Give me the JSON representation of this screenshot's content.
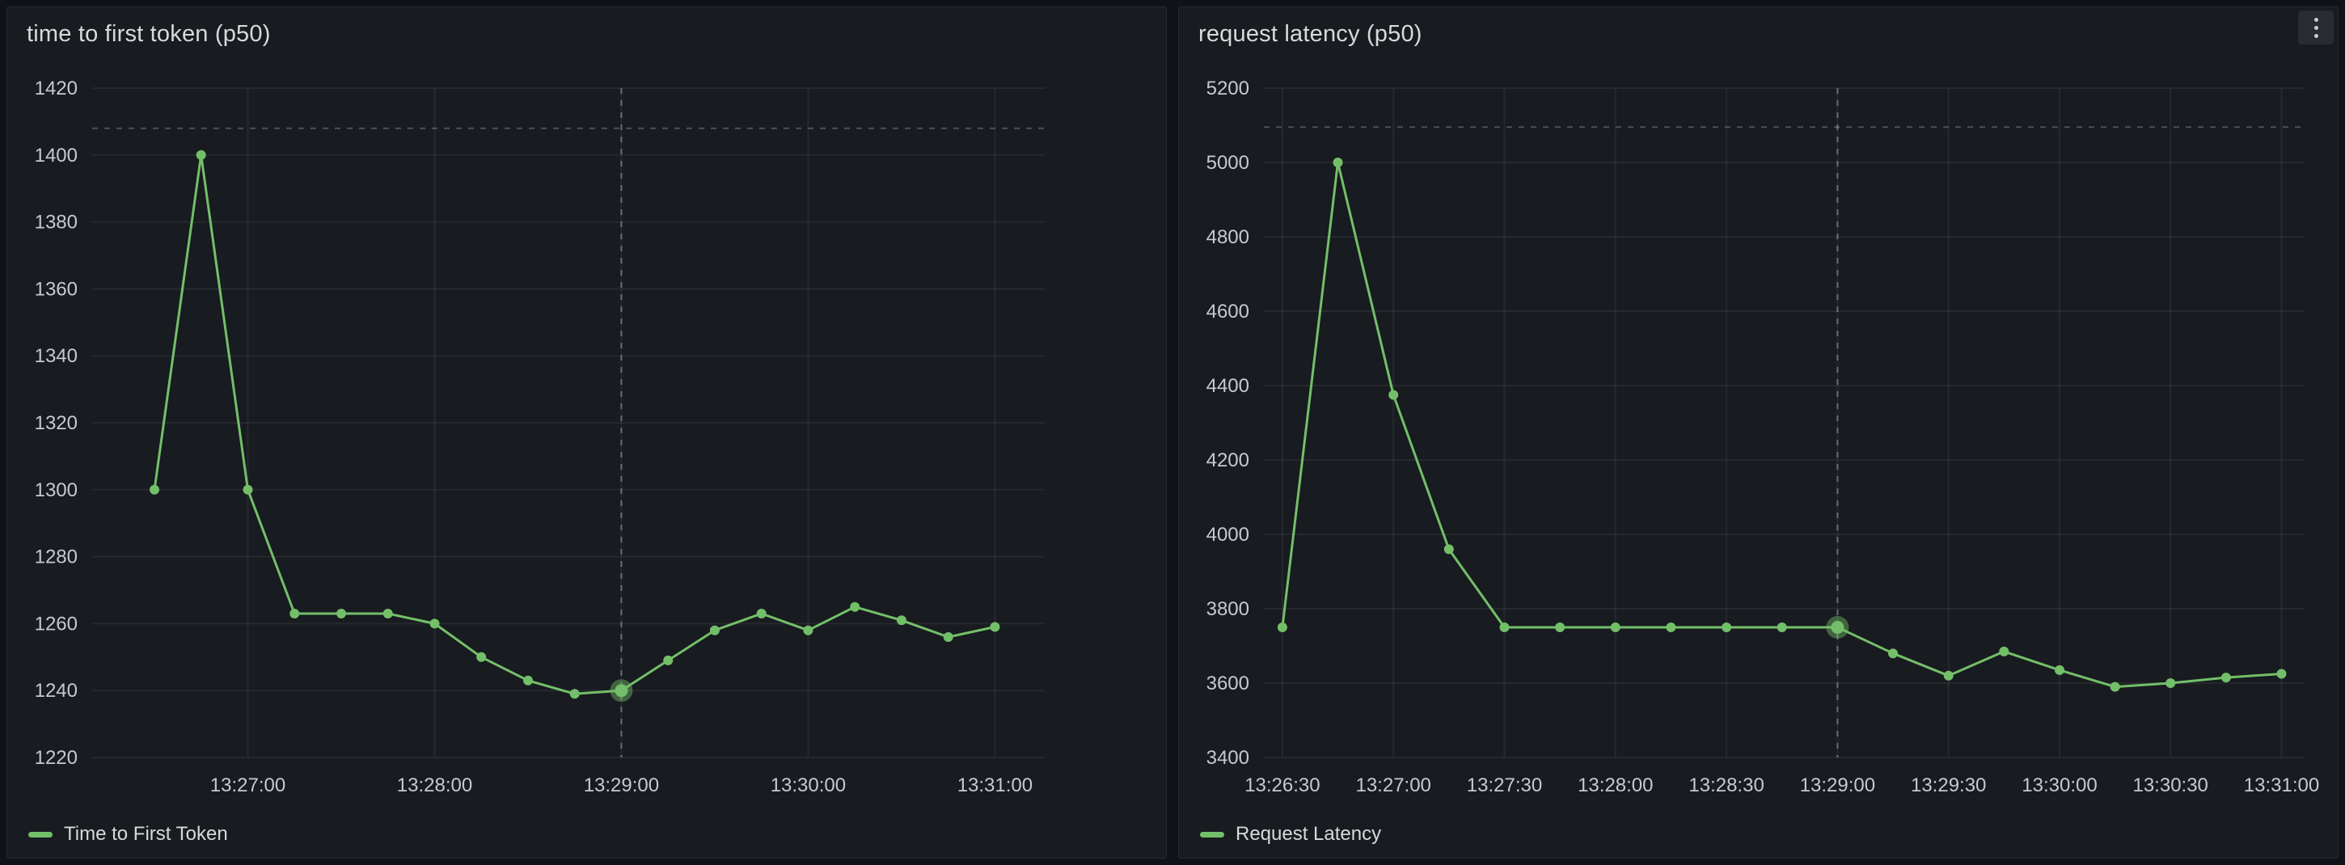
{
  "theme": {
    "page_bg": "#111217",
    "panel_bg": "#181b1f",
    "panel_border": "rgba(204,204,220,0.09)",
    "text_primary": "#d8d9da",
    "text_secondary": "#c8c9ce",
    "grid_color": "rgba(204,204,220,0.08)",
    "dashed_line_color": "rgba(204,204,220,0.30)",
    "crosshair_color": "rgba(204,204,220,0.42)",
    "series_green": "#73bf69"
  },
  "icons": {
    "panel_menu_icon": "kebab-vertical-ellipsis"
  },
  "panels": [
    {
      "title": "time to first token (p50)",
      "legend_label": "Time to First Token"
    },
    {
      "title": "request latency (p50)",
      "legend_label": "Request Latency",
      "menu_icon": "kebab-menu"
    }
  ],
  "chart_data": [
    {
      "type": "line",
      "title": "time to first token (p50)",
      "xlabel": "",
      "ylabel": "",
      "x_type": "time",
      "x_domain": [
        "13:26:10",
        "13:31:16"
      ],
      "x_ticks": [
        "13:27:00",
        "13:28:00",
        "13:29:00",
        "13:30:00",
        "13:31:00"
      ],
      "ylim": [
        1220,
        1420
      ],
      "y_ticks": [
        1220,
        1240,
        1260,
        1280,
        1300,
        1320,
        1340,
        1360,
        1380,
        1400,
        1420
      ],
      "grid": true,
      "legend_position": "bottom-left",
      "threshold_value": 1408,
      "crosshair_time": "13:29:00",
      "hover_point": [
        "13:29:00",
        1240
      ],
      "series": [
        {
          "name": "Time to First Token",
          "color": "#73bf69",
          "points": [
            [
              "13:26:30",
              1300
            ],
            [
              "13:26:45",
              1400
            ],
            [
              "13:27:00",
              1300
            ],
            [
              "13:27:15",
              1263
            ],
            [
              "13:27:30",
              1263
            ],
            [
              "13:27:45",
              1263
            ],
            [
              "13:28:00",
              1260
            ],
            [
              "13:28:15",
              1250
            ],
            [
              "13:28:30",
              1243
            ],
            [
              "13:28:45",
              1239
            ],
            [
              "13:29:00",
              1240
            ],
            [
              "13:29:15",
              1249
            ],
            [
              "13:29:30",
              1258
            ],
            [
              "13:29:45",
              1263
            ],
            [
              "13:30:00",
              1258
            ],
            [
              "13:30:15",
              1265
            ],
            [
              "13:30:30",
              1261
            ],
            [
              "13:30:45",
              1256
            ],
            [
              "13:31:00",
              1259
            ]
          ]
        }
      ]
    },
    {
      "type": "line",
      "title": "request latency (p50)",
      "xlabel": "",
      "ylabel": "",
      "x_type": "time",
      "x_domain": [
        "13:26:25",
        "13:31:06"
      ],
      "x_ticks": [
        "13:26:30",
        "13:27:00",
        "13:27:30",
        "13:28:00",
        "13:28:30",
        "13:29:00",
        "13:29:30",
        "13:30:00",
        "13:30:30",
        "13:31:00"
      ],
      "ylim": [
        3400,
        5200
      ],
      "y_ticks": [
        3400,
        3600,
        3800,
        4000,
        4200,
        4400,
        4600,
        4800,
        5000,
        5200
      ],
      "grid": true,
      "legend_position": "bottom-left",
      "threshold_value": 5095,
      "crosshair_time": "13:29:00",
      "hover_point": [
        "13:29:00",
        3750
      ],
      "series": [
        {
          "name": "Request Latency",
          "color": "#73bf69",
          "points": [
            [
              "13:26:30",
              3750
            ],
            [
              "13:26:45",
              5000
            ],
            [
              "13:27:00",
              4375
            ],
            [
              "13:27:15",
              3960
            ],
            [
              "13:27:30",
              3750
            ],
            [
              "13:27:45",
              3750
            ],
            [
              "13:28:00",
              3750
            ],
            [
              "13:28:15",
              3750
            ],
            [
              "13:28:30",
              3750
            ],
            [
              "13:28:45",
              3750
            ],
            [
              "13:29:00",
              3750
            ],
            [
              "13:29:15",
              3680
            ],
            [
              "13:29:30",
              3620
            ],
            [
              "13:29:45",
              3685
            ],
            [
              "13:30:00",
              3635
            ],
            [
              "13:30:15",
              3590
            ],
            [
              "13:30:30",
              3600
            ],
            [
              "13:30:45",
              3615
            ],
            [
              "13:31:00",
              3625
            ]
          ]
        }
      ]
    }
  ]
}
